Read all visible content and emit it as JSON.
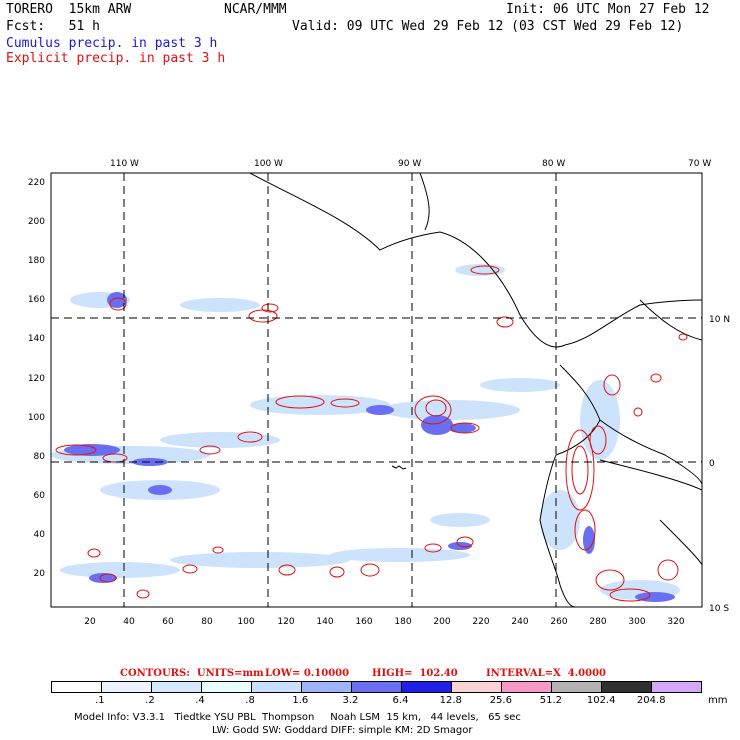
{
  "header": {
    "model": "TORERO  15km ARW",
    "org": "NCAR/MMM",
    "init": "Init: 06 UTC Mon 27 Feb 12",
    "fcst": "Fcst:   51 h",
    "valid": "Valid: 09 UTC Wed 29 Feb 12 (03 CST Wed 29 Feb 12)",
    "line_cumulus": "Cumulus precip. in past 3 h",
    "line_explicit": "Explicit precip. in past 3 h"
  },
  "map": {
    "lon_labels": [
      "110 W",
      "100 W",
      "90 W",
      "80 W",
      "70 W"
    ],
    "lat_labels": [
      "10 N",
      "0",
      "10 S"
    ],
    "y_ticks": [
      "220",
      "200",
      "180",
      "160",
      "140",
      "120",
      "100",
      "80",
      "60",
      "40",
      "20"
    ],
    "x_ticks": [
      "20",
      "40",
      "60",
      "80",
      "100",
      "120",
      "140",
      "160",
      "180",
      "200",
      "220",
      "240",
      "260",
      "280",
      "300",
      "320"
    ],
    "colors": {
      "cumulus": "#1a1ad0",
      "explicit": "#e01010"
    }
  },
  "legend": {
    "contours_label": "CONTOURS:  UNITS=mm",
    "low_label": "LOW= 0.10000",
    "high_label": "HIGH=  102.40",
    "interval_label": "INTERVAL=X  4.0000",
    "levels": [
      ".1",
      ".2",
      ".4",
      ".8",
      "1.6",
      "3.2",
      "6.4",
      "12.8",
      "25.6",
      "51.2",
      "102.4",
      "204.8"
    ],
    "units": "mm",
    "colors": [
      "#ffffff",
      "#eaf3ff",
      "#d5eaff",
      "#e8fffb",
      "#c8e0fb",
      "#9fb4f5",
      "#6a6ef0",
      "#2020e6",
      "#fbd3d3",
      "#f798c8",
      "#b3b3b3",
      "#303030",
      "#d6a6f8"
    ]
  },
  "footer": {
    "line1": "Model Info: V3.3.1   Tiedtke YSU PBL  Thompson     Noah LSM  15 km,   44 levels,   65 sec",
    "line2": "LW: Godd SW: Goddard DIFF: simple KM: 2D Smagor"
  }
}
